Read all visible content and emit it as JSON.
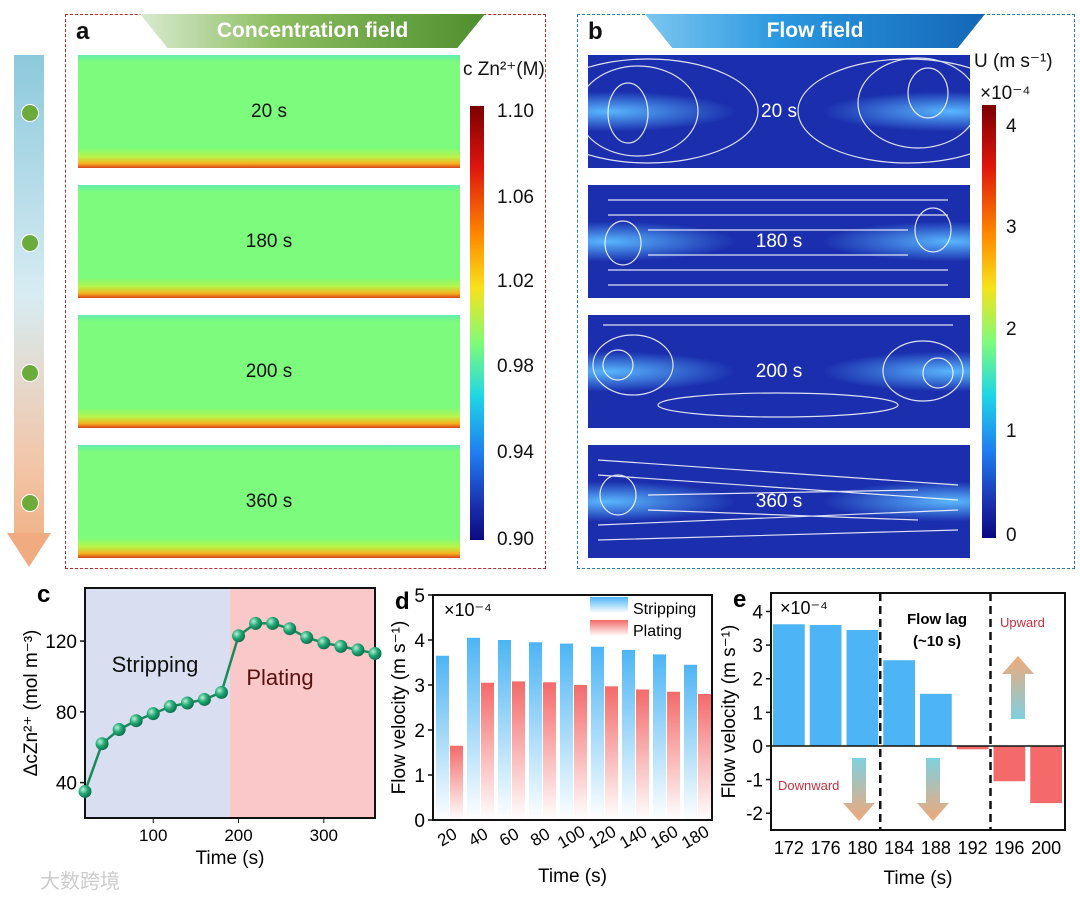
{
  "panel_a": {
    "label": "a",
    "banner": "Concentration field",
    "fields": [
      "20 s",
      "180 s",
      "200 s",
      "360 s"
    ],
    "colorbar_title": "c Zn²⁺(M)",
    "colorbar_ticks": [
      "1.10",
      "1.06",
      "1.02",
      "0.98",
      "0.94",
      "0.90"
    ]
  },
  "panel_b": {
    "label": "b",
    "banner": "Flow field",
    "fields": [
      "20 s",
      "180 s",
      "200 s",
      "360 s"
    ],
    "colorbar_title": "U (m s⁻¹)",
    "colorbar_scale": "×10⁻⁴",
    "colorbar_ticks": [
      "4",
      "3",
      "2",
      "1",
      "0"
    ]
  },
  "colors": {
    "stripping": "#4db5f5",
    "plating": "#f46a6a",
    "line": "#1a8a5c",
    "strip_bg": "#d9dff0",
    "plate_bg": "#fac8c8",
    "conc_frame": "#c0282d",
    "flow_frame": "#2a7fb8",
    "conc_banner": "#5e9a3a",
    "flow_banner": "#1a86d6"
  },
  "watermark": "大数跨境",
  "chart_data": [
    {
      "id": "c",
      "label": "c",
      "type": "line",
      "xlabel": "Time (s)",
      "ylabel": "ΔcZn²⁺ (mol m⁻³)",
      "xlim": [
        20,
        360
      ],
      "ylim": [
        20,
        150
      ],
      "xticks": [
        100,
        200,
        300
      ],
      "yticks": [
        40,
        80,
        120
      ],
      "regions": [
        {
          "name": "Stripping",
          "from": 20,
          "to": 190
        },
        {
          "name": "Plating",
          "from": 190,
          "to": 360
        }
      ],
      "x": [
        20,
        40,
        60,
        80,
        100,
        120,
        140,
        160,
        180,
        200,
        220,
        240,
        260,
        280,
        300,
        320,
        340,
        360
      ],
      "y": [
        35,
        62,
        70,
        75,
        79,
        83,
        85,
        87,
        91,
        123,
        130,
        130,
        127,
        122,
        119,
        117,
        115,
        113
      ]
    },
    {
      "id": "d",
      "label": "d",
      "type": "bar",
      "xlabel": "Time (s)",
      "ylabel": "Flow velocity (m s⁻¹)",
      "scale_note": "×10⁻⁴",
      "ylim": [
        0,
        5
      ],
      "yticks": [
        0,
        1,
        2,
        3,
        4,
        5
      ],
      "legend": "top-right",
      "categories": [
        "20",
        "40",
        "60",
        "80",
        "100",
        "120",
        "140",
        "160",
        "180"
      ],
      "series": [
        {
          "name": "Stripping",
          "values": [
            3.65,
            4.05,
            4.0,
            3.95,
            3.92,
            3.85,
            3.78,
            3.68,
            3.45
          ]
        },
        {
          "name": "Plating",
          "values": [
            1.65,
            3.05,
            3.08,
            3.06,
            3.0,
            2.97,
            2.9,
            2.85,
            2.8
          ]
        }
      ]
    },
    {
      "id": "e",
      "label": "e",
      "type": "bar",
      "xlabel": "Time (s)",
      "ylabel": "Flow velocity (m s⁻¹)",
      "scale_note": "×10⁻⁴",
      "ylim": [
        -2.5,
        4.55
      ],
      "yticks": [
        -2,
        -1,
        0,
        1,
        2,
        3,
        4
      ],
      "categories": [
        "172",
        "176",
        "180",
        "184",
        "188",
        "192",
        "196",
        "200"
      ],
      "values": [
        3.62,
        3.6,
        3.45,
        2.55,
        1.55,
        -0.1,
        -1.05,
        -1.7
      ],
      "annotations": {
        "flow_lag_1": "Flow lag",
        "flow_lag_2": "(~10 s)",
        "upward": "Upward",
        "downward": "Downward"
      }
    }
  ]
}
